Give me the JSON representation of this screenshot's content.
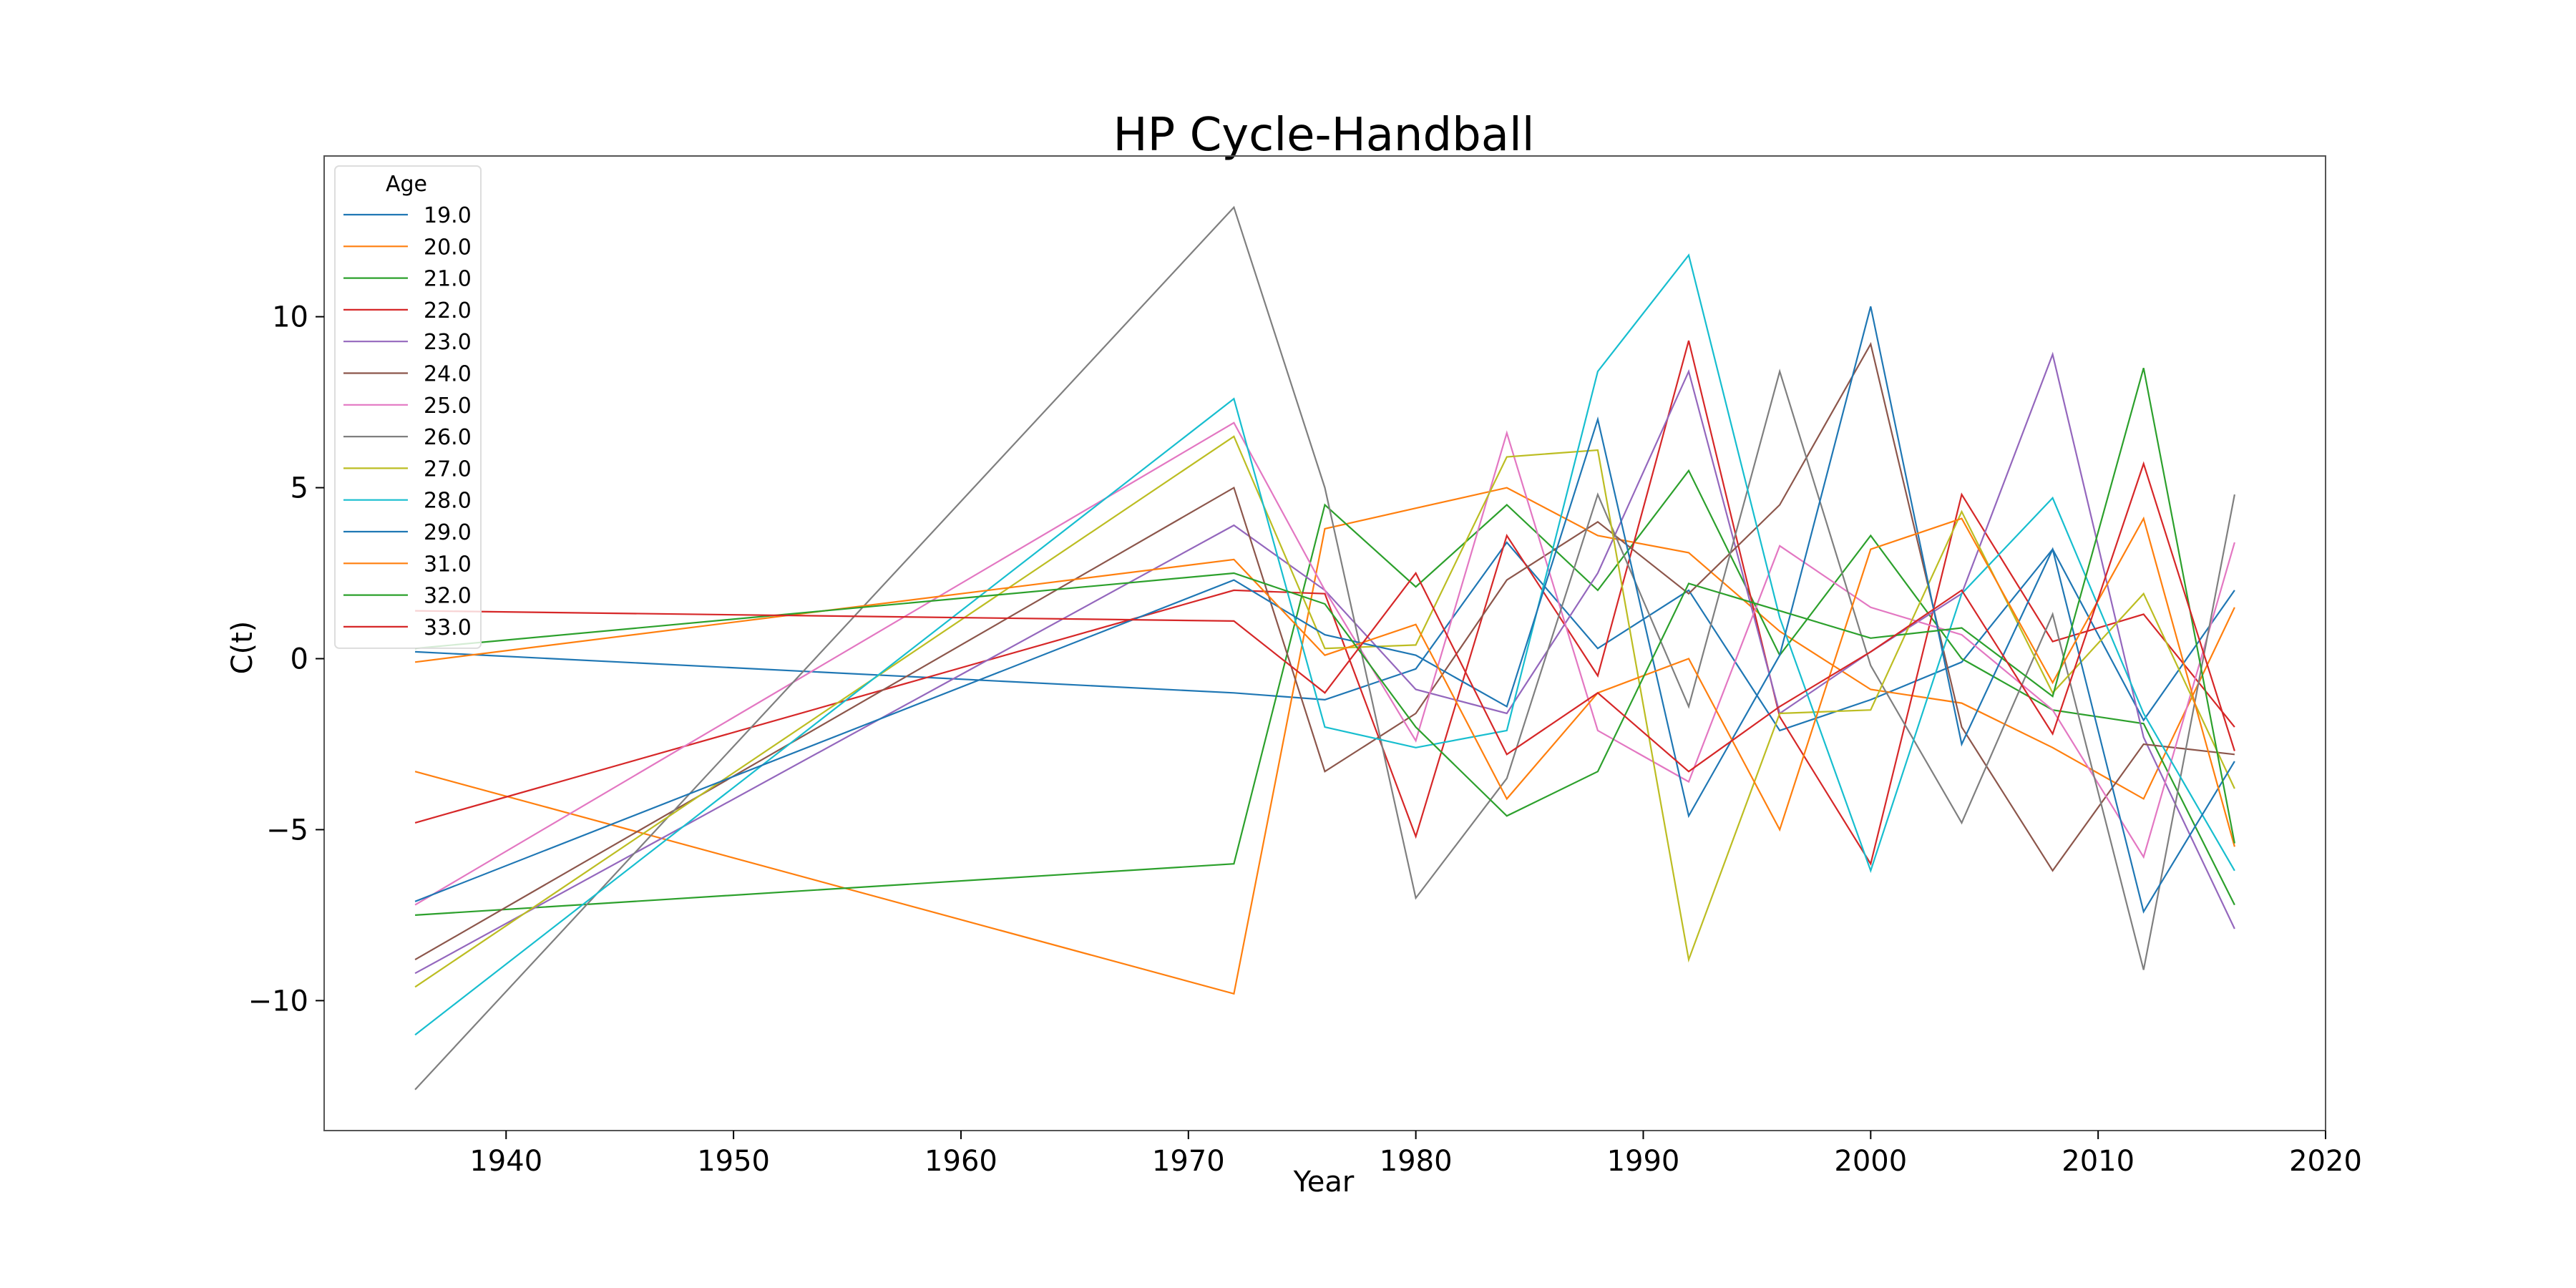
{
  "chart_data": {
    "type": "line",
    "title": "HP Cycle-Handball",
    "xlabel": "Year",
    "ylabel": "C(t)",
    "xlim": [
      1932,
      2020
    ],
    "ylim": [
      -13.8,
      14.7
    ],
    "xticks": [
      1940,
      1950,
      1960,
      1970,
      1980,
      1990,
      2000,
      2010,
      2020
    ],
    "yticks": [
      -10,
      -5,
      0,
      5,
      10
    ],
    "grid": false,
    "legend": {
      "title": "Age",
      "placement": "top-left"
    },
    "x": [
      1936,
      1972,
      1976,
      1980,
      1984,
      1988,
      1992,
      1996,
      2000,
      2004,
      2008,
      2012,
      2016
    ],
    "series": [
      {
        "name": "19.0",
        "color": "#1f77b4",
        "values": [
          0.2,
          -1.0,
          -1.2,
          -0.3,
          3.4,
          0.3,
          2.0,
          -2.1,
          -1.2,
          -0.1,
          3.2,
          -1.8,
          2.0
        ]
      },
      {
        "name": "20.0",
        "color": "#ff7f0e",
        "values": [
          -3.3,
          -9.8,
          3.8,
          4.4,
          5.0,
          3.6,
          3.1,
          0.8,
          -0.9,
          -1.3,
          -2.6,
          -4.1,
          1.5
        ]
      },
      {
        "name": "21.0",
        "color": "#2ca02c",
        "values": [
          -7.5,
          -6.0,
          4.5,
          2.1,
          4.5,
          2.0,
          5.5,
          0.1,
          3.6,
          0.0,
          -1.5,
          -1.9,
          -7.2
        ]
      },
      {
        "name": "22.0",
        "color": "#d62728",
        "values": [
          -4.8,
          2.0,
          1.9,
          -5.2,
          3.6,
          -0.5,
          9.3,
          -1.7,
          -6.0,
          4.8,
          0.5,
          1.3,
          -2.0
        ]
      },
      {
        "name": "23.0",
        "color": "#9467bd",
        "values": [
          -9.2,
          3.9,
          2.0,
          -0.9,
          -1.6,
          2.5,
          8.4,
          -1.6,
          0.2,
          1.9,
          8.9,
          -2.3,
          -7.9
        ]
      },
      {
        "name": "24.0",
        "color": "#8c564b",
        "values": [
          -8.8,
          5.0,
          -3.3,
          -1.6,
          2.3,
          4.0,
          1.9,
          4.5,
          9.2,
          -2.0,
          -6.2,
          -2.5,
          -2.8
        ]
      },
      {
        "name": "25.0",
        "color": "#e377c2",
        "values": [
          -7.2,
          6.9,
          2.0,
          -2.4,
          6.6,
          -2.1,
          -3.6,
          3.3,
          1.5,
          0.7,
          -1.5,
          -5.8,
          3.4
        ]
      },
      {
        "name": "26.0",
        "color": "#7f7f7f",
        "values": [
          -12.6,
          13.2,
          5.0,
          -7.0,
          -3.5,
          4.8,
          -1.4,
          8.4,
          -0.2,
          -4.8,
          1.3,
          -9.1,
          4.8
        ]
      },
      {
        "name": "27.0",
        "color": "#bcbd22",
        "values": [
          -9.6,
          6.5,
          0.3,
          0.4,
          5.9,
          6.1,
          -8.8,
          -1.6,
          -1.5,
          4.3,
          -1.0,
          1.9,
          -3.8
        ]
      },
      {
        "name": "28.0",
        "color": "#17becf",
        "values": [
          -11.0,
          7.6,
          -2.0,
          -2.6,
          -2.1,
          8.4,
          11.8,
          1.2,
          -6.2,
          1.9,
          4.7,
          -1.6,
          -6.2
        ]
      },
      {
        "name": "29.0",
        "color": "#1f77b4",
        "values": [
          -7.1,
          2.3,
          0.7,
          0.1,
          -1.4,
          7.0,
          -4.6,
          0.1,
          10.3,
          -2.5,
          3.2,
          -7.4,
          -3.0
        ]
      },
      {
        "name": "31.0",
        "color": "#ff7f0e",
        "values": [
          -0.1,
          2.9,
          0.1,
          1.0,
          -4.1,
          -1.0,
          0.0,
          -5.0,
          3.2,
          4.1,
          -0.7,
          4.1,
          -5.5
        ]
      },
      {
        "name": "32.0",
        "color": "#2ca02c",
        "values": [
          0.3,
          2.5,
          1.6,
          -2.0,
          -4.6,
          -3.3,
          2.2,
          1.4,
          0.6,
          0.9,
          -1.1,
          8.5,
          -5.4
        ]
      },
      {
        "name": "33.0",
        "color": "#d62728",
        "values": [
          1.4,
          1.1,
          -1.0,
          2.5,
          -2.8,
          -1.0,
          -3.3,
          -1.4,
          0.2,
          2.0,
          -2.2,
          5.7,
          -2.7
        ]
      }
    ]
  }
}
